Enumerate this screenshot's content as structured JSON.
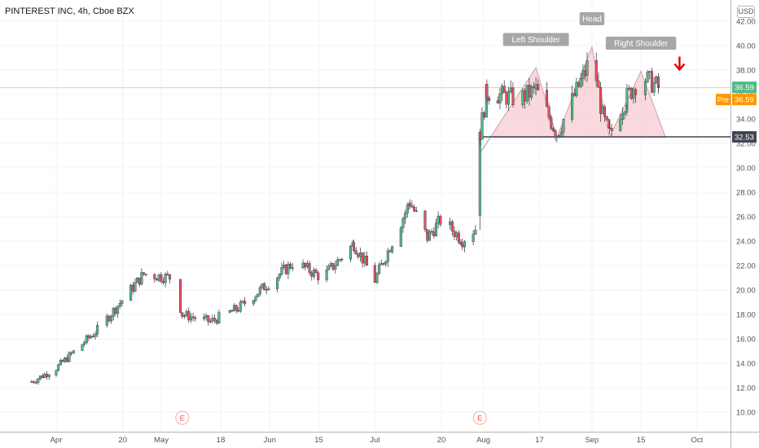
{
  "chart_data": {
    "type": "candlestick",
    "title": "PINTEREST INC, 4h, Cboe BZX",
    "currency": "USD",
    "ylim": [
      9.4,
      42.8
    ],
    "y_ticks": [
      "10.00",
      "12.00",
      "14.00",
      "16.00",
      "18.00",
      "20.00",
      "22.00",
      "24.00",
      "26.00",
      "28.00",
      "30.00",
      "32.00",
      "34.00",
      "36.00",
      "38.00",
      "40.00",
      "42.00"
    ],
    "x_ticks": [
      {
        "label": "Apr",
        "day": 0
      },
      {
        "label": "20",
        "day": 19
      },
      {
        "label": "May",
        "day": 30
      },
      {
        "label": "18",
        "day": 47
      },
      {
        "label": "Jun",
        "day": 61
      },
      {
        "label": "15",
        "day": 75
      },
      {
        "label": "Jul",
        "day": 91
      },
      {
        "label": "20",
        "day": 110
      },
      {
        "label": "Aug",
        "day": 122
      },
      {
        "label": "17",
        "day": 138
      },
      {
        "label": "Sep",
        "day": 153
      },
      {
        "label": "15",
        "day": 167
      },
      {
        "label": "Oct",
        "day": 183
      }
    ],
    "last_price": 36.59,
    "pre_label": "Pre",
    "pre_price": 36.59,
    "neckline": 32.53,
    "earnings_marker": "E",
    "earnings_days": [
      36,
      121
    ],
    "pattern_labels": [
      "Left Shoulder",
      "Head",
      "Right Shoulder"
    ],
    "key_points": [
      {
        "day": -7,
        "value": 12.5
      },
      {
        "day": 0,
        "value": 13.6
      },
      {
        "day": 12,
        "value": 16.8
      },
      {
        "day": 25,
        "value": 21.3
      },
      {
        "day": 33,
        "value": 21.0
      },
      {
        "day": 36,
        "value": 18.0
      },
      {
        "day": 44,
        "value": 17.4
      },
      {
        "day": 52,
        "value": 18.5
      },
      {
        "day": 68,
        "value": 22.3
      },
      {
        "day": 76,
        "value": 21.0
      },
      {
        "day": 85,
        "value": 23.8
      },
      {
        "day": 91,
        "value": 20.8
      },
      {
        "day": 101,
        "value": 27.2
      },
      {
        "day": 106,
        "value": 24.3
      },
      {
        "day": 110,
        "value": 25.8
      },
      {
        "day": 116,
        "value": 24.1
      },
      {
        "day": 120,
        "value": 25.1
      },
      {
        "day": 121,
        "value": 32.9
      },
      {
        "day": 123,
        "value": 36.2
      },
      {
        "day": 132,
        "value": 35.6
      },
      {
        "day": 137,
        "value": 36.4
      },
      {
        "day": 143,
        "value": 32.8
      },
      {
        "day": 151,
        "value": 37.8
      },
      {
        "day": 153,
        "value": 39.5
      },
      {
        "day": 156,
        "value": 34.2
      },
      {
        "day": 158,
        "value": 32.7
      },
      {
        "day": 163,
        "value": 35.8
      },
      {
        "day": 167,
        "value": 37.5
      },
      {
        "day": 172,
        "value": 36.6
      }
    ],
    "colors": {
      "up": "#26a69a",
      "down": "#ef5350",
      "candle_up": "#53b987",
      "candle_down": "#eb4d5c",
      "pattern_fill": "#f7c9cf",
      "neckline": "#434651",
      "price_line": "#ff9800",
      "arrow": "#e00000",
      "label_bg": "#a7a7a7"
    }
  }
}
